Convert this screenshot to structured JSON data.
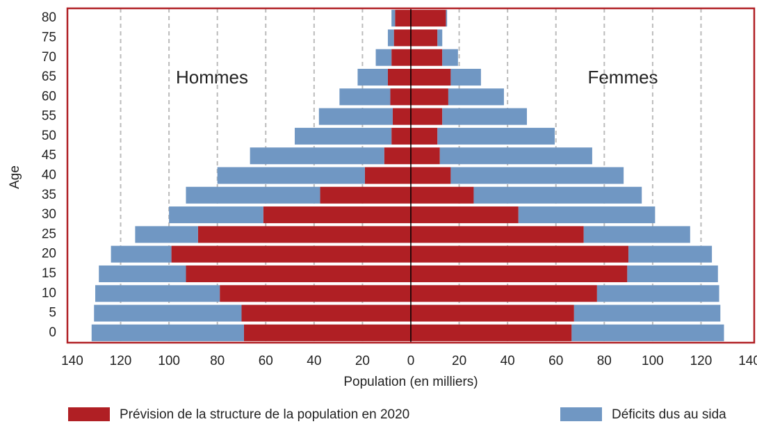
{
  "chart_data": {
    "type": "pyramid",
    "xlabel": "Population (en milliers)",
    "ylabel": "Age",
    "annotations": [
      "Hommes",
      "Femmes"
    ],
    "categories": [
      "0",
      "5",
      "10",
      "15",
      "20",
      "25",
      "30",
      "35",
      "40",
      "45",
      "50",
      "55",
      "60",
      "65",
      "70",
      "75",
      "80"
    ],
    "series": [
      {
        "name": "Prévision de la structure de la population en 2020",
        "color": "#b01f24",
        "men": [
          69,
          70,
          79,
          93,
          99,
          88,
          61,
          37.5,
          19,
          11,
          8,
          7.5,
          8.5,
          9.5,
          8,
          7,
          6.5
        ],
        "women": [
          66.5,
          67.5,
          77,
          89.5,
          90,
          71.5,
          44.5,
          26,
          16.5,
          12,
          11,
          13,
          15.5,
          16.5,
          13,
          11,
          14.5
        ]
      },
      {
        "name": "Déficits dus au sida",
        "color": "#7097c3",
        "men": [
          63,
          61,
          51.5,
          36,
          25,
          26,
          39,
          55.5,
          61,
          55.5,
          40,
          30.5,
          21,
          12.5,
          6.5,
          2.5,
          1.5
        ],
        "women": [
          63,
          60.5,
          50.5,
          37.5,
          34.5,
          44,
          56.5,
          69.5,
          71.5,
          63,
          48.5,
          35,
          23,
          12.5,
          6.5,
          2,
          0.5
        ]
      }
    ],
    "xlim": [
      -142,
      142
    ],
    "xticks": [
      {
        "value": -140,
        "label": "140"
      },
      {
        "value": -120,
        "label": "120"
      },
      {
        "value": -100,
        "label": "100"
      },
      {
        "value": -80,
        "label": "80"
      },
      {
        "value": -60,
        "label": "60"
      },
      {
        "value": -40,
        "label": "40"
      },
      {
        "value": -20,
        "label": "20"
      },
      0,
      20,
      40,
      60,
      80,
      100,
      120,
      140
    ],
    "grid": true,
    "frame_color": "#b01f24"
  }
}
